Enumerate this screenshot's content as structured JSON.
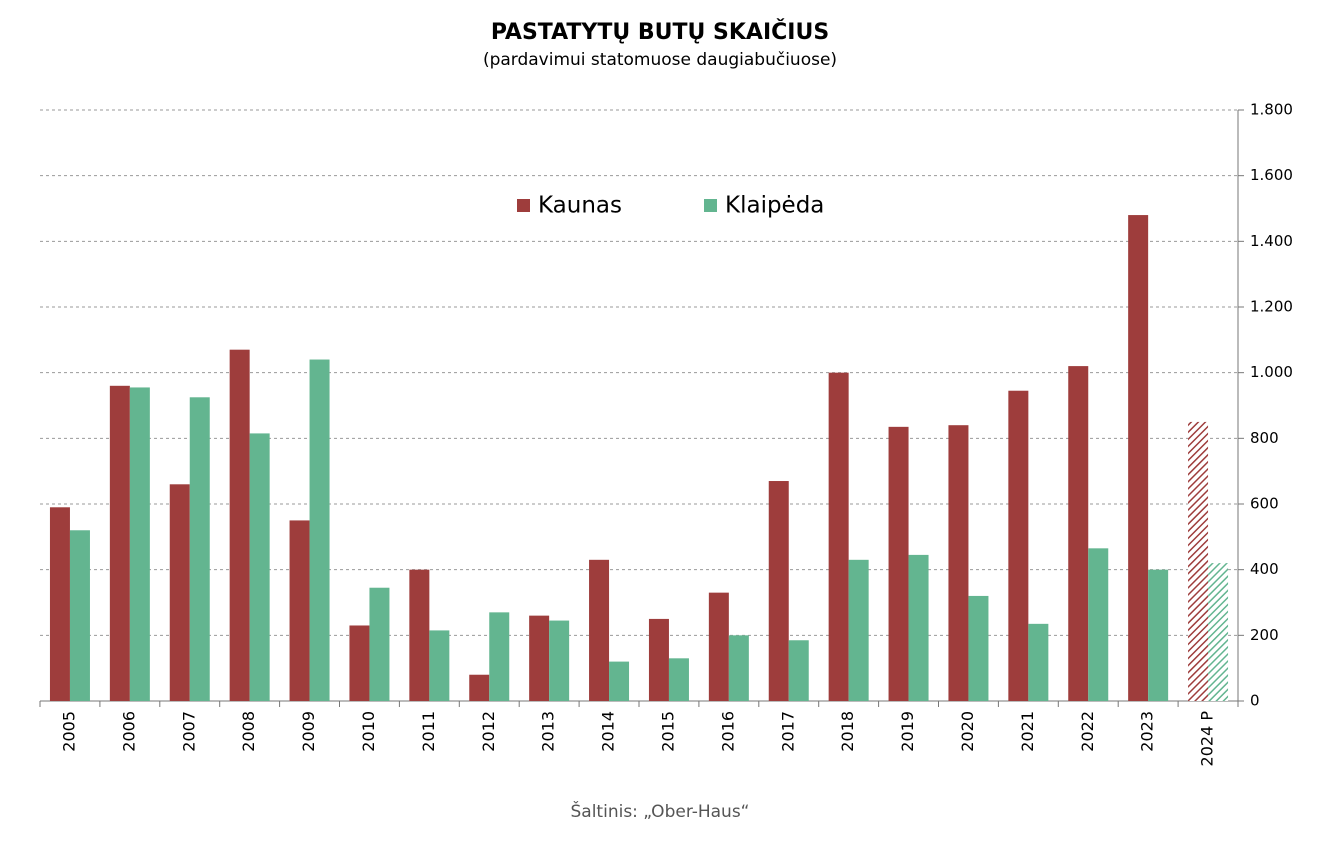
{
  "chart_data": {
    "type": "bar",
    "title": "PASTATYTŲ BUTŲ SKAIČIUS",
    "subtitle": "(pardavimui statomuose daugiabučiuose)",
    "source": "Šaltinis: „Ober-Haus“",
    "categories": [
      "2005",
      "2006",
      "2007",
      "2008",
      "2009",
      "2010",
      "2011",
      "2012",
      "2013",
      "2014",
      "2015",
      "2016",
      "2017",
      "2018",
      "2019",
      "2020",
      "2021",
      "2022",
      "2023",
      "2024 P"
    ],
    "series": [
      {
        "name": "Kaunas",
        "color": "#9e3d3c",
        "values": [
          590,
          960,
          660,
          1070,
          550,
          230,
          400,
          80,
          260,
          430,
          250,
          330,
          670,
          1000,
          835,
          840,
          945,
          1020,
          1480,
          850
        ]
      },
      {
        "name": "Klaipėda",
        "color": "#63b590",
        "values": [
          520,
          955,
          925,
          815,
          1040,
          345,
          215,
          270,
          245,
          120,
          130,
          200,
          185,
          430,
          445,
          320,
          235,
          465,
          400,
          420
        ]
      }
    ],
    "ylim": [
      0,
      1800
    ],
    "yticks": [
      0,
      200,
      400,
      600,
      800,
      {
        "value": 1000,
        "label": "1.000"
      },
      {
        "value": 1200,
        "label": "1.200"
      },
      {
        "value": 1400,
        "label": "1.400"
      },
      {
        "value": 1600,
        "label": "1.600"
      },
      {
        "value": 1800,
        "label": "1.800"
      }
    ],
    "grid": true,
    "hatched_last": true,
    "legend": "top"
  }
}
